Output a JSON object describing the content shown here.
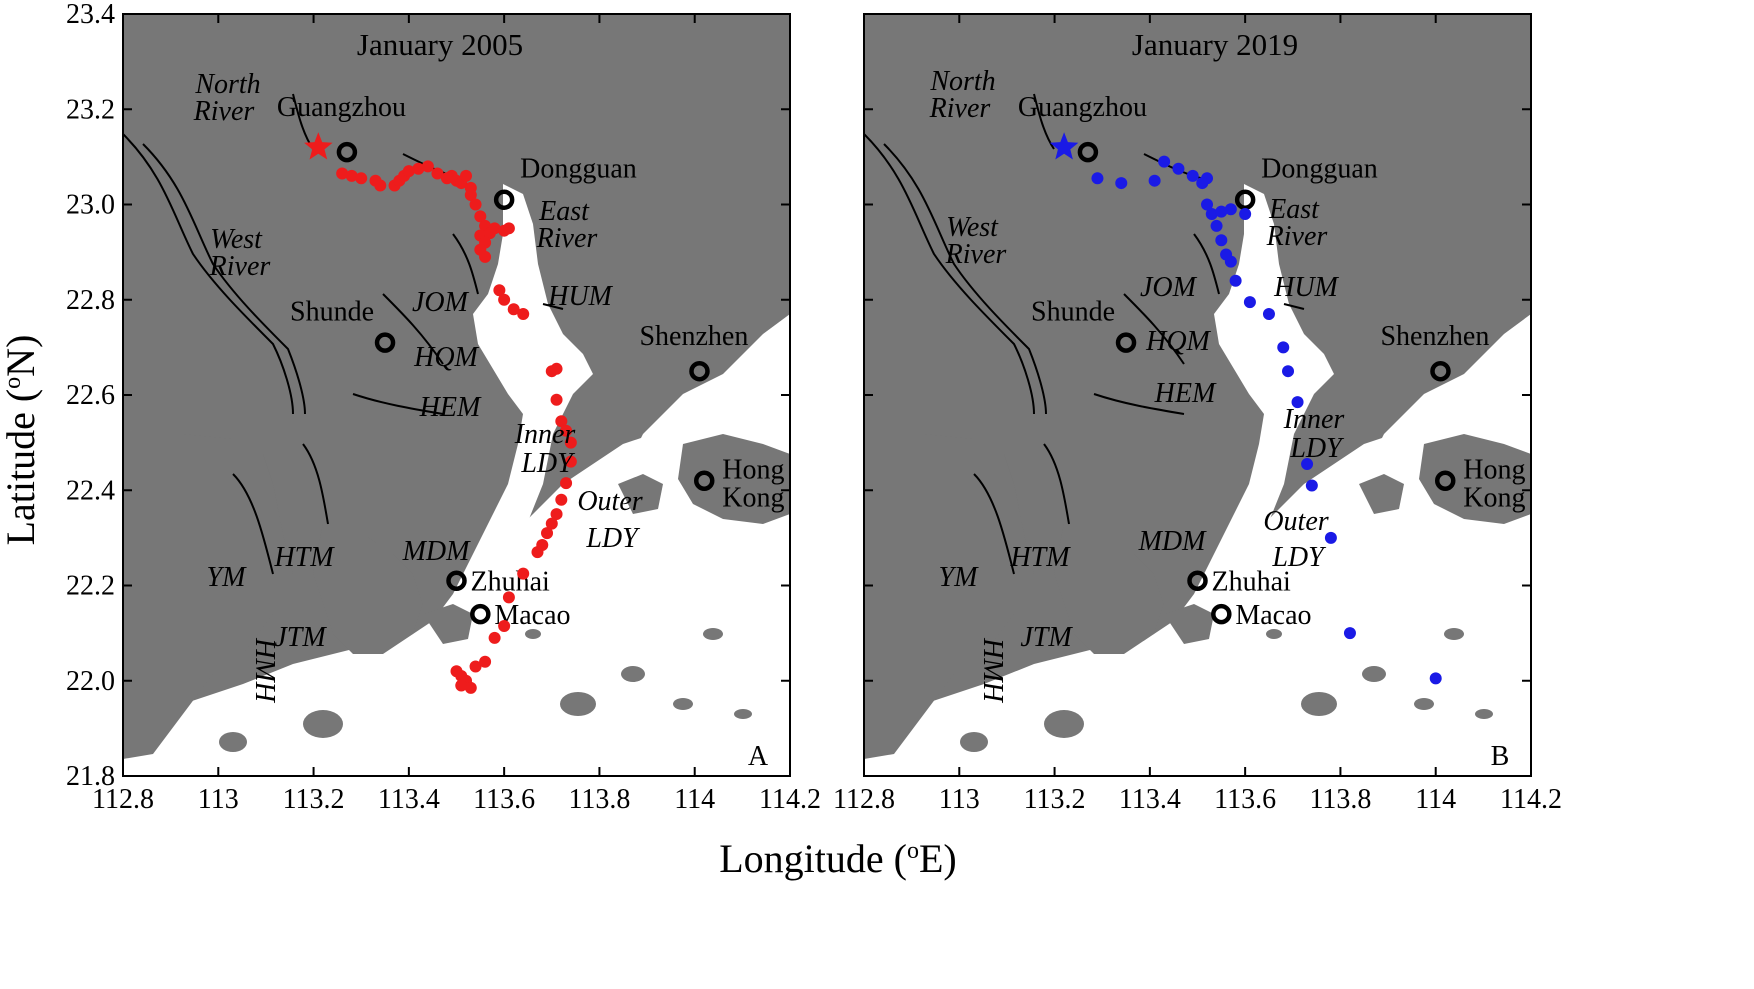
{
  "x_axis": {
    "title": "Longitude (°E)",
    "ticks": [
      112.8,
      113,
      113.2,
      113.4,
      113.6,
      113.8,
      114,
      114.2
    ],
    "tick_labels": [
      "112.8",
      "113",
      "113.2",
      "113.4",
      "113.6",
      "113.8",
      "114",
      "114.2"
    ],
    "range": [
      112.8,
      114.2
    ]
  },
  "y_axis": {
    "title": "Latitude (°N)",
    "ticks": [
      21.8,
      22.0,
      22.2,
      22.4,
      22.6,
      22.8,
      23.0,
      23.2,
      23.4
    ],
    "tick_labels": [
      "21.8",
      "22.0",
      "22.2",
      "22.4",
      "22.6",
      "22.8",
      "23.0",
      "23.2",
      "23.4"
    ],
    "range": [
      21.8,
      23.4
    ]
  },
  "colors": {
    "land": "#777777",
    "water": "#ffffff",
    "panel_a_points": "#ee1c1c",
    "panel_b_points": "#1a1ae6",
    "city": "#000000"
  },
  "cities": [
    {
      "name": "Guangzhou",
      "lon": 113.27,
      "lat": 23.11
    },
    {
      "name": "Dongguan",
      "lon": 113.6,
      "lat": 23.01
    },
    {
      "name": "Shunde",
      "lon": 113.35,
      "lat": 22.71
    },
    {
      "name": "Shenzhen",
      "lon": 114.01,
      "lat": 22.65
    },
    {
      "name": "Hong\nKong",
      "lon": 114.02,
      "lat": 22.42
    },
    {
      "name": "Zhuhai",
      "lon": 113.5,
      "lat": 22.21
    },
    {
      "name": "Macao",
      "lon": 113.55,
      "lat": 22.14
    }
  ],
  "water_labels": [
    "North River",
    "West River",
    "East River",
    "JOM",
    "HUM",
    "HQM",
    "HEM",
    "Inner LDY",
    "Outer LDY",
    "MDM",
    "HTM",
    "YM",
    "JTM",
    "HMH"
  ],
  "chart_data": [
    {
      "type": "scatter",
      "title": "January 2005",
      "panel_letter": "A",
      "xlabel": "Longitude (°E)",
      "ylabel": "Latitude (°N)",
      "xlim": [
        112.8,
        114.2
      ],
      "ylim": [
        21.8,
        23.4
      ],
      "star": {
        "lon": 113.21,
        "lat": 23.12
      },
      "points": [
        [
          113.26,
          23.065
        ],
        [
          113.28,
          23.06
        ],
        [
          113.3,
          23.055
        ],
        [
          113.33,
          23.05
        ],
        [
          113.34,
          23.04
        ],
        [
          113.37,
          23.04
        ],
        [
          113.38,
          23.05
        ],
        [
          113.39,
          23.06
        ],
        [
          113.4,
          23.07
        ],
        [
          113.42,
          23.075
        ],
        [
          113.44,
          23.08
        ],
        [
          113.46,
          23.065
        ],
        [
          113.48,
          23.055
        ],
        [
          113.49,
          23.06
        ],
        [
          113.5,
          23.05
        ],
        [
          113.51,
          23.045
        ],
        [
          113.52,
          23.06
        ],
        [
          113.53,
          23.035
        ],
        [
          113.53,
          23.02
        ],
        [
          113.54,
          23.0
        ],
        [
          113.55,
          22.975
        ],
        [
          113.56,
          22.955
        ],
        [
          113.55,
          22.935
        ],
        [
          113.57,
          22.94
        ],
        [
          113.58,
          22.95
        ],
        [
          113.6,
          22.945
        ],
        [
          113.61,
          22.95
        ],
        [
          113.56,
          22.92
        ],
        [
          113.55,
          22.905
        ],
        [
          113.56,
          22.89
        ],
        [
          113.59,
          22.82
        ],
        [
          113.6,
          22.8
        ],
        [
          113.62,
          22.78
        ],
        [
          113.64,
          22.77
        ],
        [
          113.7,
          22.65
        ],
        [
          113.71,
          22.655
        ],
        [
          113.71,
          22.59
        ],
        [
          113.72,
          22.545
        ],
        [
          113.73,
          22.525
        ],
        [
          113.74,
          22.5
        ],
        [
          113.74,
          22.46
        ],
        [
          113.73,
          22.415
        ],
        [
          113.72,
          22.38
        ],
        [
          113.71,
          22.35
        ],
        [
          113.7,
          22.33
        ],
        [
          113.69,
          22.31
        ],
        [
          113.68,
          22.285
        ],
        [
          113.67,
          22.27
        ],
        [
          113.64,
          22.225
        ],
        [
          113.61,
          22.175
        ],
        [
          113.6,
          22.115
        ],
        [
          113.58,
          22.09
        ],
        [
          113.56,
          22.04
        ],
        [
          113.54,
          22.03
        ],
        [
          113.5,
          22.02
        ],
        [
          113.51,
          22.01
        ],
        [
          113.52,
          22.0
        ],
        [
          113.53,
          21.985
        ],
        [
          113.51,
          21.99
        ]
      ]
    },
    {
      "type": "scatter",
      "title": "January 2019",
      "panel_letter": "B",
      "xlabel": "Longitude (°E)",
      "ylabel": "Latitude (°N)",
      "xlim": [
        112.8,
        114.2
      ],
      "ylim": [
        21.8,
        23.4
      ],
      "star": {
        "lon": 113.22,
        "lat": 23.12
      },
      "points": [
        [
          113.29,
          23.055
        ],
        [
          113.34,
          23.045
        ],
        [
          113.41,
          23.05
        ],
        [
          113.43,
          23.09
        ],
        [
          113.46,
          23.075
        ],
        [
          113.49,
          23.06
        ],
        [
          113.52,
          23.055
        ],
        [
          113.51,
          23.045
        ],
        [
          113.52,
          23.0
        ],
        [
          113.53,
          22.98
        ],
        [
          113.55,
          22.985
        ],
        [
          113.57,
          22.99
        ],
        [
          113.6,
          22.98
        ],
        [
          113.54,
          22.955
        ],
        [
          113.55,
          22.925
        ],
        [
          113.56,
          22.895
        ],
        [
          113.57,
          22.88
        ],
        [
          113.58,
          22.84
        ],
        [
          113.61,
          22.795
        ],
        [
          113.65,
          22.77
        ],
        [
          113.68,
          22.7
        ],
        [
          113.69,
          22.65
        ],
        [
          113.71,
          22.585
        ],
        [
          113.73,
          22.455
        ],
        [
          113.74,
          22.41
        ],
        [
          113.78,
          22.3
        ],
        [
          113.82,
          22.1
        ],
        [
          114.0,
          22.005
        ]
      ]
    }
  ]
}
